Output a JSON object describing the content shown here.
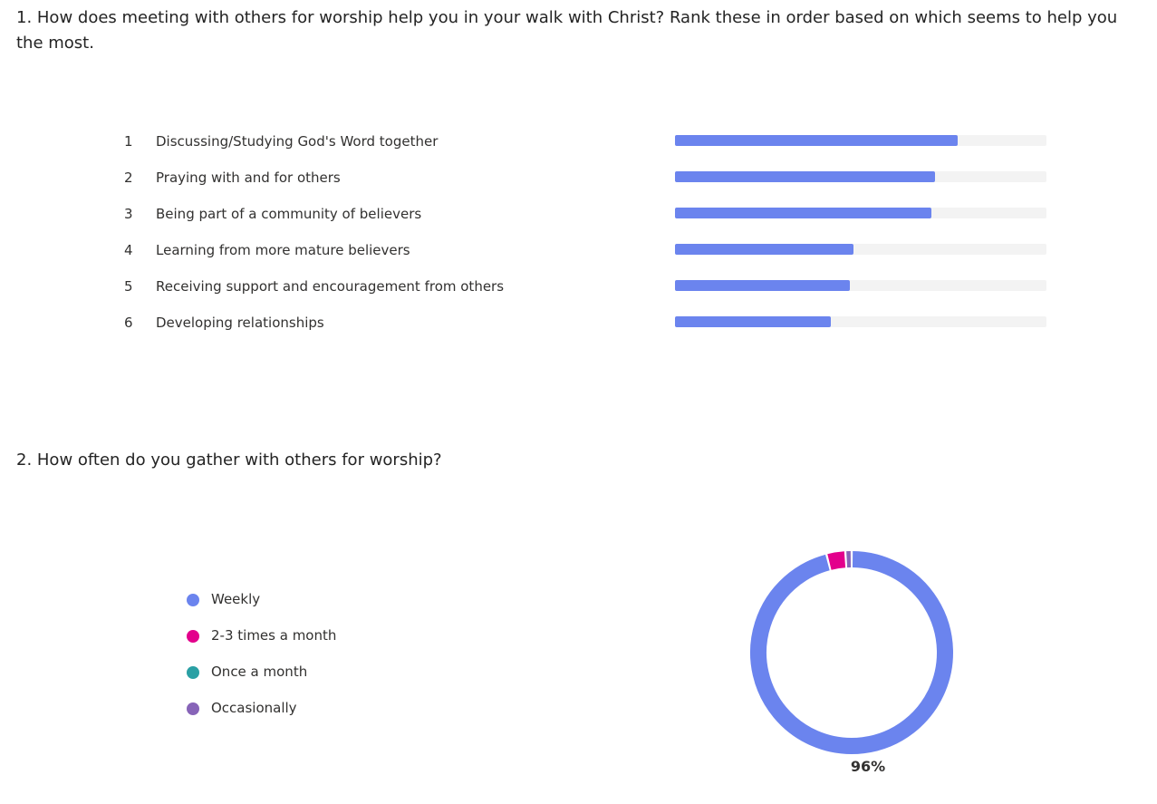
{
  "q1": {
    "title": "1. How does meeting with others for worship help you in your walk with Christ? Rank these in order based on which seems to help you the most."
  },
  "q2": {
    "title": "2. How often do you gather with others for worship?"
  },
  "colors": {
    "bar": "#6b84ee",
    "track": "#f3f3f3",
    "weekly": "#6b84ee",
    "two_three": "#e3008c",
    "once_month": "#2aa0a4",
    "occasionally": "#8764b8"
  },
  "chart_data": [
    {
      "type": "bar",
      "orientation": "horizontal",
      "categories": [
        "Discussing/Studying God's Word together",
        "Praying with and for others",
        "Being part of a community of believers",
        "Learning from more mature believers",
        "Receiving support and encouragement from others",
        "Developing relationships"
      ],
      "ranks": [
        "1",
        "2",
        "3",
        "4",
        "5",
        "6"
      ],
      "values": [
        0.76,
        0.7,
        0.69,
        0.48,
        0.47,
        0.42
      ],
      "xlim": [
        0,
        1
      ],
      "grid": false
    },
    {
      "type": "pie",
      "style": "donut",
      "categories": [
        "Weekly",
        "2-3 times a month",
        "Once a month",
        "Occasionally"
      ],
      "values": [
        96,
        3,
        0,
        1
      ],
      "label": "96%",
      "legend": "left"
    }
  ]
}
